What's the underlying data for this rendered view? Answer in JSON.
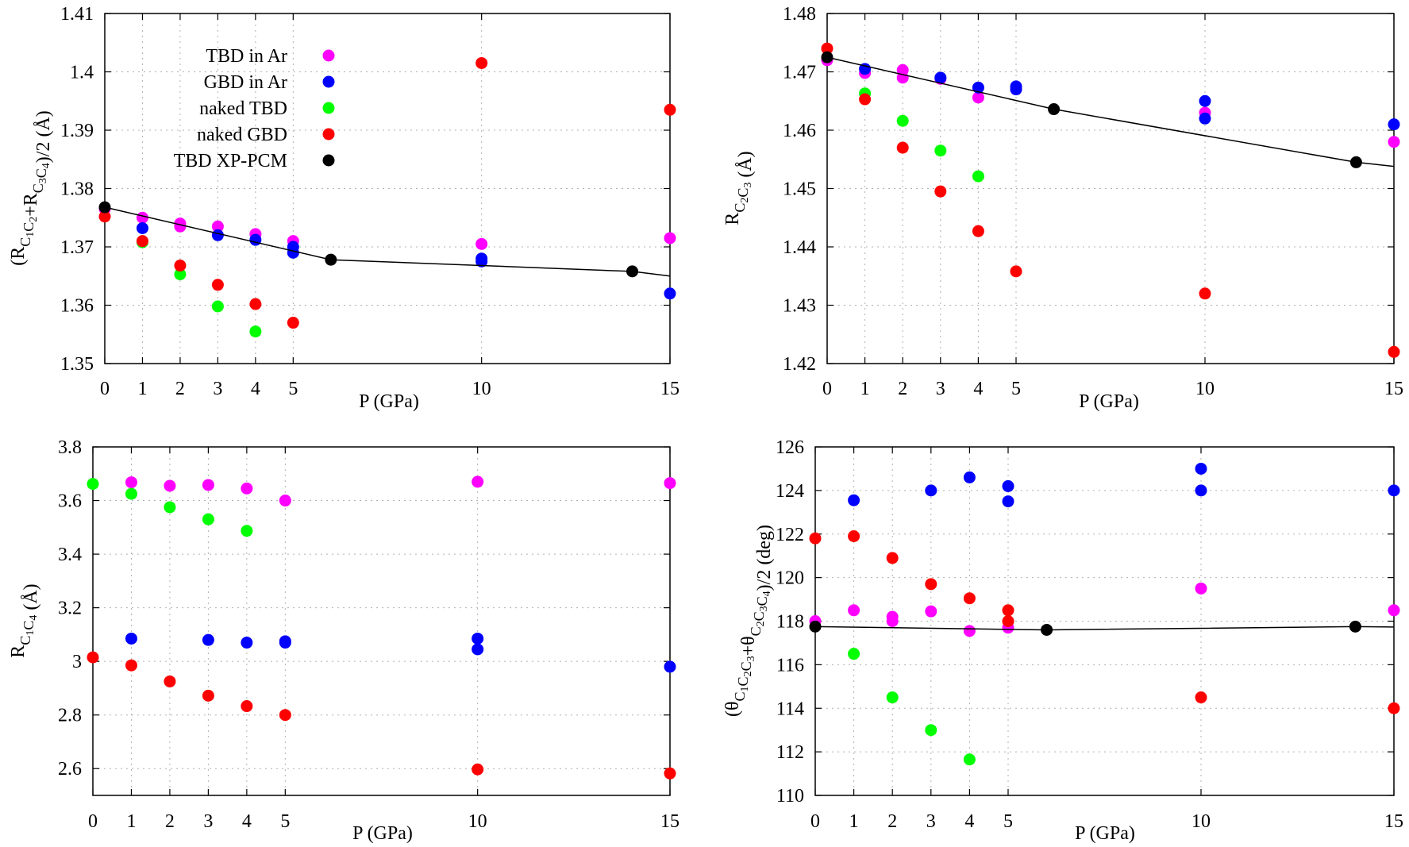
{
  "legend": [
    {
      "label": "TBD in Ar",
      "color": "#ff00ff"
    },
    {
      "label": "GBD in Ar",
      "color": "#0000ff"
    },
    {
      "label": "naked TBD",
      "color": "#00ff00"
    },
    {
      "label": "naked GBD",
      "color": "#ff0000"
    },
    {
      "label": "TBD XP-PCM",
      "color": "#000000"
    }
  ],
  "chart_data": [
    {
      "type": "scatter",
      "xlabel": "P (GPa)",
      "ylabel": "(R_C1C2+R_C3C4)/2 (Å)",
      "xlim": [
        0,
        15
      ],
      "ylim": [
        1.35,
        1.41
      ],
      "xticks": [
        "0",
        "1",
        "2",
        "3",
        "4",
        "5",
        "10",
        "15"
      ],
      "yticks": [
        "1.35",
        "1.36",
        "1.37",
        "1.38",
        "1.39",
        "1.4",
        "1.41"
      ],
      "grid": true,
      "legend_position": "top-left",
      "series": [
        {
          "name": "TBD in Ar",
          "color": "#ff00ff",
          "points": [
            [
              0,
              1.3765
            ],
            [
              1,
              1.375
            ],
            [
              2,
              1.374
            ],
            [
              2,
              1.3735
            ],
            [
              3,
              1.3735
            ],
            [
              4,
              1.3722
            ],
            [
              5,
              1.371
            ],
            [
              10,
              1.3705
            ],
            [
              15,
              1.3715
            ]
          ]
        },
        {
          "name": "GBD in Ar",
          "color": "#0000ff",
          "points": [
            [
              1,
              1.3732
            ],
            [
              3,
              1.372
            ],
            [
              4,
              1.3712
            ],
            [
              5,
              1.37
            ],
            [
              5,
              1.369
            ],
            [
              10,
              1.368
            ],
            [
              10,
              1.3675
            ],
            [
              15,
              1.362
            ]
          ]
        },
        {
          "name": "naked TBD",
          "color": "#00ff00",
          "points": [
            [
              1,
              1.3708
            ],
            [
              2,
              1.3653
            ],
            [
              3,
              1.3598
            ],
            [
              4,
              1.3555
            ]
          ]
        },
        {
          "name": "naked GBD",
          "color": "#ff0000",
          "points": [
            [
              0,
              1.3752
            ],
            [
              1,
              1.371
            ],
            [
              2,
              1.3668
            ],
            [
              3,
              1.3635
            ],
            [
              4,
              1.3602
            ],
            [
              5,
              1.357
            ],
            [
              10,
              1.4015
            ],
            [
              15,
              1.3935
            ]
          ]
        },
        {
          "name": "TBD XP-PCM",
          "color": "#000000",
          "points": [
            [
              0,
              1.3768
            ],
            [
              6,
              1.3678
            ],
            [
              14,
              1.3658
            ]
          ],
          "line": [
            [
              0,
              1.3768
            ],
            [
              6,
              1.3678
            ],
            [
              14,
              1.3658
            ],
            [
              15,
              1.365
            ]
          ]
        }
      ]
    },
    {
      "type": "scatter",
      "xlabel": "P (GPa)",
      "ylabel": "R_C2C3 (Å)",
      "xlim": [
        0,
        15
      ],
      "ylim": [
        1.42,
        1.48
      ],
      "xticks": [
        "0",
        "1",
        "2",
        "3",
        "4",
        "5",
        "10",
        "15"
      ],
      "yticks": [
        "1.42",
        "1.43",
        "1.44",
        "1.45",
        "1.46",
        "1.47",
        "1.48"
      ],
      "grid": true,
      "series": [
        {
          "name": "TBD in Ar",
          "color": "#ff00ff",
          "points": [
            [
              0,
              1.472
            ],
            [
              1,
              1.4698
            ],
            [
              2,
              1.4703
            ],
            [
              2,
              1.469
            ],
            [
              3,
              1.4688
            ],
            [
              4,
              1.4656
            ],
            [
              5,
              1.467
            ],
            [
              10,
              1.463
            ],
            [
              15,
              1.458
            ]
          ]
        },
        {
          "name": "GBD in Ar",
          "color": "#0000ff",
          "points": [
            [
              1,
              1.4705
            ],
            [
              3,
              1.469
            ],
            [
              4,
              1.4673
            ],
            [
              5,
              1.4675
            ],
            [
              5,
              1.467
            ],
            [
              10,
              1.465
            ],
            [
              10,
              1.462
            ],
            [
              15,
              1.461
            ]
          ]
        },
        {
          "name": "naked TBD",
          "color": "#00ff00",
          "points": [
            [
              1,
              1.4663
            ],
            [
              2,
              1.4616
            ],
            [
              3,
              1.4565
            ],
            [
              4,
              1.4521
            ]
          ]
        },
        {
          "name": "naked GBD",
          "color": "#ff0000",
          "points": [
            [
              0,
              1.474
            ],
            [
              1,
              1.4653
            ],
            [
              2,
              1.457
            ],
            [
              3,
              1.4495
            ],
            [
              4,
              1.4427
            ],
            [
              5,
              1.4358
            ],
            [
              10,
              1.432
            ],
            [
              15,
              1.422
            ]
          ]
        },
        {
          "name": "TBD XP-PCM",
          "color": "#000000",
          "points": [
            [
              0,
              1.4725
            ],
            [
              6,
              1.4636
            ],
            [
              14,
              1.4545
            ]
          ],
          "line": [
            [
              0,
              1.4725
            ],
            [
              6,
              1.4636
            ],
            [
              14,
              1.4545
            ],
            [
              15,
              1.4538
            ]
          ]
        }
      ]
    },
    {
      "type": "scatter",
      "xlabel": "P (GPa)",
      "ylabel": "R_C1C4 (Å)",
      "xlim": [
        0,
        15
      ],
      "ylim": [
        2.5,
        3.8
      ],
      "xticks": [
        "0",
        "1",
        "2",
        "3",
        "4",
        "5",
        "10",
        "15"
      ],
      "yticks": [
        "2.6",
        "2.8",
        "3",
        "3.2",
        "3.4",
        "3.6",
        "3.8"
      ],
      "grid": true,
      "series": [
        {
          "name": "TBD in Ar",
          "color": "#ff00ff",
          "points": [
            [
              1,
              3.668
            ],
            [
              2,
              3.655
            ],
            [
              3,
              3.658
            ],
            [
              4,
              3.645
            ],
            [
              5,
              3.6
            ],
            [
              10,
              3.67
            ],
            [
              15,
              3.665
            ]
          ]
        },
        {
          "name": "GBD in Ar",
          "color": "#0000ff",
          "points": [
            [
              1,
              3.085
            ],
            [
              3,
              3.08
            ],
            [
              4,
              3.07
            ],
            [
              5,
              3.075
            ],
            [
              5,
              3.07
            ],
            [
              10,
              3.085
            ],
            [
              10,
              3.045
            ],
            [
              15,
              2.98
            ]
          ]
        },
        {
          "name": "naked TBD",
          "color": "#00ff00",
          "points": [
            [
              0,
              3.662
            ],
            [
              1,
              3.625
            ],
            [
              2,
              3.575
            ],
            [
              3,
              3.53
            ],
            [
              4,
              3.487
            ]
          ]
        },
        {
          "name": "naked GBD",
          "color": "#ff0000",
          "points": [
            [
              0,
              3.015
            ],
            [
              1,
              2.985
            ],
            [
              2,
              2.925
            ],
            [
              3,
              2.872
            ],
            [
              4,
              2.833
            ],
            [
              5,
              2.8
            ],
            [
              10,
              2.597
            ],
            [
              15,
              2.582
            ]
          ]
        }
      ]
    },
    {
      "type": "scatter",
      "xlabel": "P (GPa)",
      "ylabel": "(θ_C1C2C3+θ_C2C3C4)/2 (deg)",
      "xlim": [
        0,
        15
      ],
      "ylim": [
        110,
        126
      ],
      "xticks": [
        "0",
        "1",
        "2",
        "3",
        "4",
        "5",
        "10",
        "15"
      ],
      "yticks": [
        "110",
        "112",
        "114",
        "116",
        "118",
        "120",
        "122",
        "124",
        "126"
      ],
      "grid": true,
      "series": [
        {
          "name": "TBD in Ar",
          "color": "#ff00ff",
          "points": [
            [
              0,
              118.0
            ],
            [
              1,
              118.5
            ],
            [
              2,
              118.2
            ],
            [
              2,
              118.0
            ],
            [
              3,
              118.45
            ],
            [
              4,
              117.55
            ],
            [
              5,
              117.7
            ],
            [
              10,
              119.5
            ],
            [
              15,
              118.5
            ]
          ]
        },
        {
          "name": "GBD in Ar",
          "color": "#0000ff",
          "points": [
            [
              1,
              123.55
            ],
            [
              3,
              124.0
            ],
            [
              4,
              124.6
            ],
            [
              5,
              124.2
            ],
            [
              5,
              123.5
            ],
            [
              10,
              125.0
            ],
            [
              10,
              124.0
            ],
            [
              15,
              124.0
            ]
          ]
        },
        {
          "name": "naked TBD",
          "color": "#00ff00",
          "points": [
            [
              1,
              116.5
            ],
            [
              2,
              114.5
            ],
            [
              3,
              113.0
            ],
            [
              4,
              111.65
            ]
          ]
        },
        {
          "name": "naked GBD",
          "color": "#ff0000",
          "points": [
            [
              0,
              121.8
            ],
            [
              1,
              121.9
            ],
            [
              2,
              120.9
            ],
            [
              3,
              119.7
            ],
            [
              4,
              119.05
            ],
            [
              5,
              118.5
            ],
            [
              5,
              118.0
            ],
            [
              10,
              114.5
            ],
            [
              15,
              114.0
            ]
          ]
        },
        {
          "name": "TBD XP-PCM",
          "color": "#000000",
          "points": [
            [
              0,
              117.75
            ],
            [
              6,
              117.6
            ],
            [
              14,
              117.75
            ]
          ],
          "line": [
            [
              0,
              117.75
            ],
            [
              6,
              117.6
            ],
            [
              14,
              117.75
            ],
            [
              15,
              117.73
            ]
          ]
        }
      ]
    }
  ]
}
